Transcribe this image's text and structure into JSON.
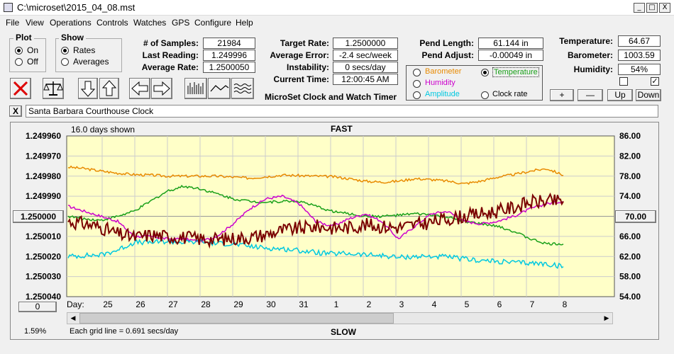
{
  "window": {
    "title": "C:\\microset\\2015_04_08.mst",
    "minimize": "_",
    "maximize": "□",
    "close": "X"
  },
  "menu": [
    "File",
    "View",
    "Operations",
    "Controls",
    "Watches",
    "GPS",
    "Configure",
    "Help"
  ],
  "plot_group": {
    "title": "Plot",
    "options": [
      "On",
      "Off"
    ],
    "selected": "On"
  },
  "show_group": {
    "title": "Show",
    "options": [
      "Rates",
      "Averages"
    ],
    "selected": "Rates"
  },
  "stats": {
    "samples_label": "# of Samples:",
    "samples": "21984",
    "last_label": "Last Reading:",
    "last": "1.249996",
    "avg_label": "Average Rate:",
    "avg": "1.2500050",
    "target_label": "Target Rate:",
    "target": "1.2500000",
    "avgerr_label": "Average Error:",
    "avgerr": "-2.4 sec/week",
    "instab_label": "Instability:",
    "instab": "0 secs/day",
    "time_label": "Current Time:",
    "time": "12:00:45 AM",
    "pendlen_label": "Pend Length:",
    "pendlen": "61.144 in",
    "pendadj_label": "Pend Adjust:",
    "pendadj": "-0.00049 in",
    "temp_label": "Temperature:",
    "temp": "64.67",
    "baro_label": "Barometer:",
    "baro": "1003.59",
    "hum_label": "Humidity:",
    "hum": "54%"
  },
  "app_title": "MicroSet Clock and Watch Timer",
  "sensors": [
    {
      "label": "Barometer",
      "color": "#e88a00",
      "selected": false
    },
    {
      "label": "Temperature",
      "color": "#1aa01a",
      "selected": true
    },
    {
      "label": "Humidity",
      "color": "#cc00cc",
      "selected": false
    },
    {
      "label": "Amplitude",
      "color": "#00c8e0",
      "selected": false
    },
    {
      "label": "Clock rate",
      "color": "#000000",
      "selected": false
    }
  ],
  "sensor_buttons": [
    "+",
    "—",
    "Up",
    "Down"
  ],
  "clock_name": "Santa Barbara Courthouse Clock",
  "clear_button": "X",
  "chart_data": {
    "type": "line",
    "top_label": "FAST",
    "bottom_label": "SLOW",
    "days_shown": "16.0 days shown",
    "grid_note": "Each grid line = 0.691 secs/day",
    "corner_pct": "1.59%",
    "left_ticks": [
      "1.249960",
      "1.249970",
      "1.249980",
      "1.249990",
      "1.250000",
      "1.250010",
      "1.250020",
      "1.250030",
      "1.250040"
    ],
    "right_ticks": [
      "86.00",
      "82.00",
      "78.00",
      "74.00",
      "70.00",
      "66.00",
      "62.00",
      "58.00",
      "54.00"
    ],
    "left_ylim": [
      1.24996,
      1.25004
    ],
    "right_ylim": [
      54,
      86
    ],
    "center_left": "1.250000",
    "center_right": "70.00",
    "bottom_left_button": "0",
    "x_label": "Day:",
    "x_ticks": [
      "25",
      "26",
      "27",
      "28",
      "29",
      "30",
      "31",
      "1",
      "2",
      "3",
      "4",
      "5",
      "6",
      "7",
      "8"
    ],
    "series": [
      {
        "name": "Barometer",
        "color": "#e88a00",
        "values": [
          79.8,
          79.5,
          79.0,
          78.6,
          78.3,
          78.2,
          78.0,
          78.0,
          78.0,
          78.0,
          77.8,
          77.6,
          77.9,
          78.2,
          78.1,
          78.0,
          77.9,
          77.5,
          77.0,
          76.8,
          77.0,
          77.5,
          77.3,
          77.0,
          76.5,
          77.0,
          77.8,
          78.3,
          79.0,
          79.5,
          78.2
        ]
      },
      {
        "name": "Temperature",
        "color": "#1aa01a",
        "values": [
          70.0,
          69.5,
          69.2,
          70.0,
          71.0,
          73.0,
          75.0,
          76.0,
          75.5,
          74.5,
          73.5,
          73.0,
          72.8,
          73.0,
          73.0,
          72.0,
          71.0,
          70.5,
          70.0,
          70.0,
          70.2,
          70.5,
          70.3,
          69.8,
          69.0,
          68.5,
          68.0,
          67.0,
          65.5,
          64.5,
          64.5
        ]
      },
      {
        "name": "Humidity",
        "color": "#cc00cc",
        "values": [
          72.0,
          71.0,
          70.0,
          69.0,
          66.0,
          66.0,
          65.5,
          65.5,
          65.0,
          66.0,
          68.5,
          71.5,
          73.5,
          74.0,
          72.5,
          69.0,
          68.0,
          69.5,
          70.5,
          69.0,
          65.5,
          68.0,
          70.5,
          71.0,
          69.0,
          68.5,
          69.0,
          70.0,
          71.5,
          72.5,
          73.0
        ]
      },
      {
        "name": "Amplitude",
        "color": "#00c8e0",
        "values": [
          62.0,
          62.2,
          62.3,
          63.3,
          64.8,
          64.8,
          65.0,
          64.8,
          64.9,
          64.6,
          64.5,
          64.0,
          63.7,
          63.5,
          63.2,
          62.8,
          62.5,
          62.6,
          62.3,
          62.2,
          61.8,
          62.0,
          62.0,
          61.9,
          61.5,
          61.2,
          61.0,
          60.8,
          60.7,
          60.5,
          60.0
        ]
      },
      {
        "name": "Clock rate",
        "color": "#7a0000",
        "values": [
          69.0,
          68.5,
          67.8,
          66.5,
          65.8,
          66.3,
          66.0,
          65.8,
          65.5,
          65.4,
          65.6,
          65.8,
          66.4,
          67.2,
          67.6,
          68.0,
          67.7,
          67.8,
          68.3,
          68.0,
          67.8,
          68.3,
          68.8,
          69.5,
          70.0,
          70.5,
          71.0,
          71.8,
          72.8,
          73.0,
          73.0
        ]
      }
    ]
  }
}
